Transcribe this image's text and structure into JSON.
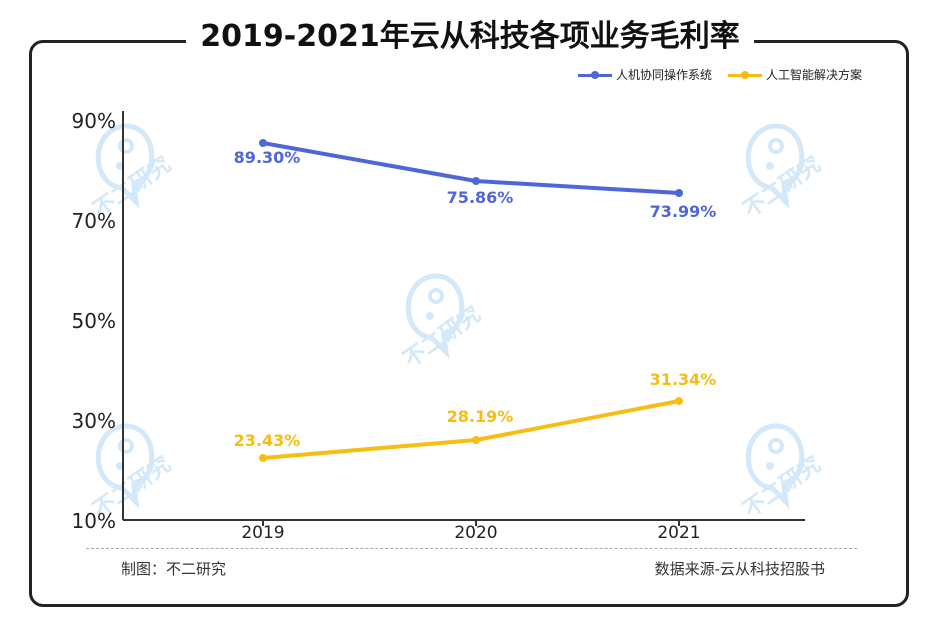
{
  "title": "2019-2021年云从科技各项业务毛利率",
  "footer": {
    "left": "制图：不二研究",
    "right": "数据来源-云从科技招股书"
  },
  "watermark": "不二研究",
  "colors": {
    "series1": "#4f66d9",
    "series2": "#f7bd12",
    "axis": "#333333",
    "frame": "#222222"
  },
  "chart_data": {
    "type": "line",
    "title": "2019-2021年云从科技各项业务毛利率",
    "categories": [
      "2019",
      "2020",
      "2021"
    ],
    "series": [
      {
        "name": "人机协同操作系统",
        "values": [
          89.3,
          75.86,
          73.99
        ],
        "labels": [
          "89.30%",
          "75.86%",
          "73.99%"
        ]
      },
      {
        "name": "人工智能解决方案",
        "values": [
          23.43,
          28.19,
          31.34
        ],
        "labels": [
          "23.43%",
          "28.19%",
          "31.34%"
        ]
      }
    ],
    "yticks": [
      "10%",
      "30%",
      "50%",
      "70%",
      "90%"
    ],
    "legend": "top-right",
    "grid": false
  }
}
